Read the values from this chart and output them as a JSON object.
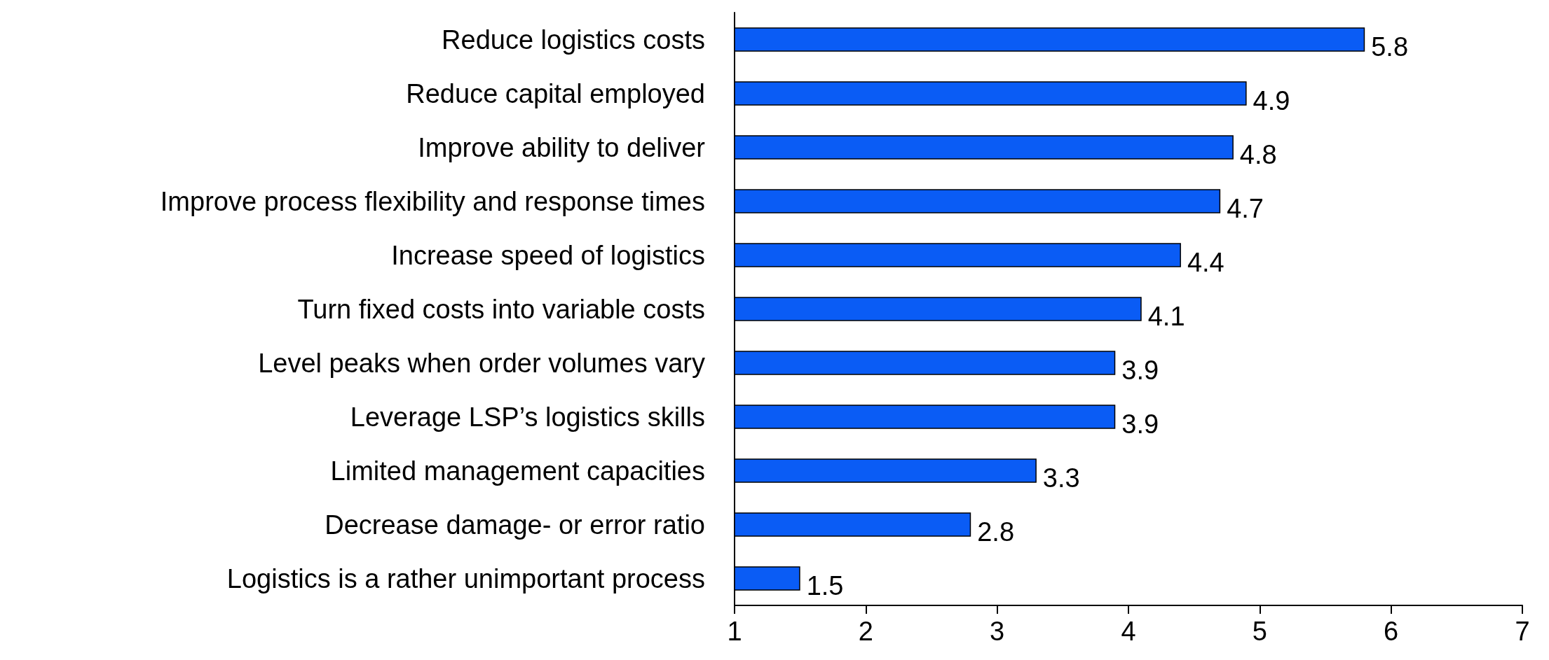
{
  "chart_data": {
    "type": "bar",
    "orientation": "horizontal",
    "categories": [
      "Reduce logistics costs",
      "Reduce capital employed",
      "Improve ability to deliver",
      "Improve process flexibility and response times",
      "Increase speed of logistics",
      "Turn fixed costs into variable costs",
      "Level peaks when order volumes vary",
      "Leverage LSP’s logistics skills",
      "Limited management capacities",
      "Decrease damage- or error ratio",
      "Logistics is a rather unimportant process"
    ],
    "values": [
      5.8,
      4.9,
      4.8,
      4.7,
      4.4,
      4.1,
      3.9,
      3.9,
      3.3,
      2.8,
      1.5
    ],
    "color": "#0a5cf5",
    "xlim": [
      1,
      7
    ],
    "xticks": [
      1,
      2,
      3,
      4,
      5,
      6,
      7
    ],
    "data_labels": true,
    "grid": false
  }
}
